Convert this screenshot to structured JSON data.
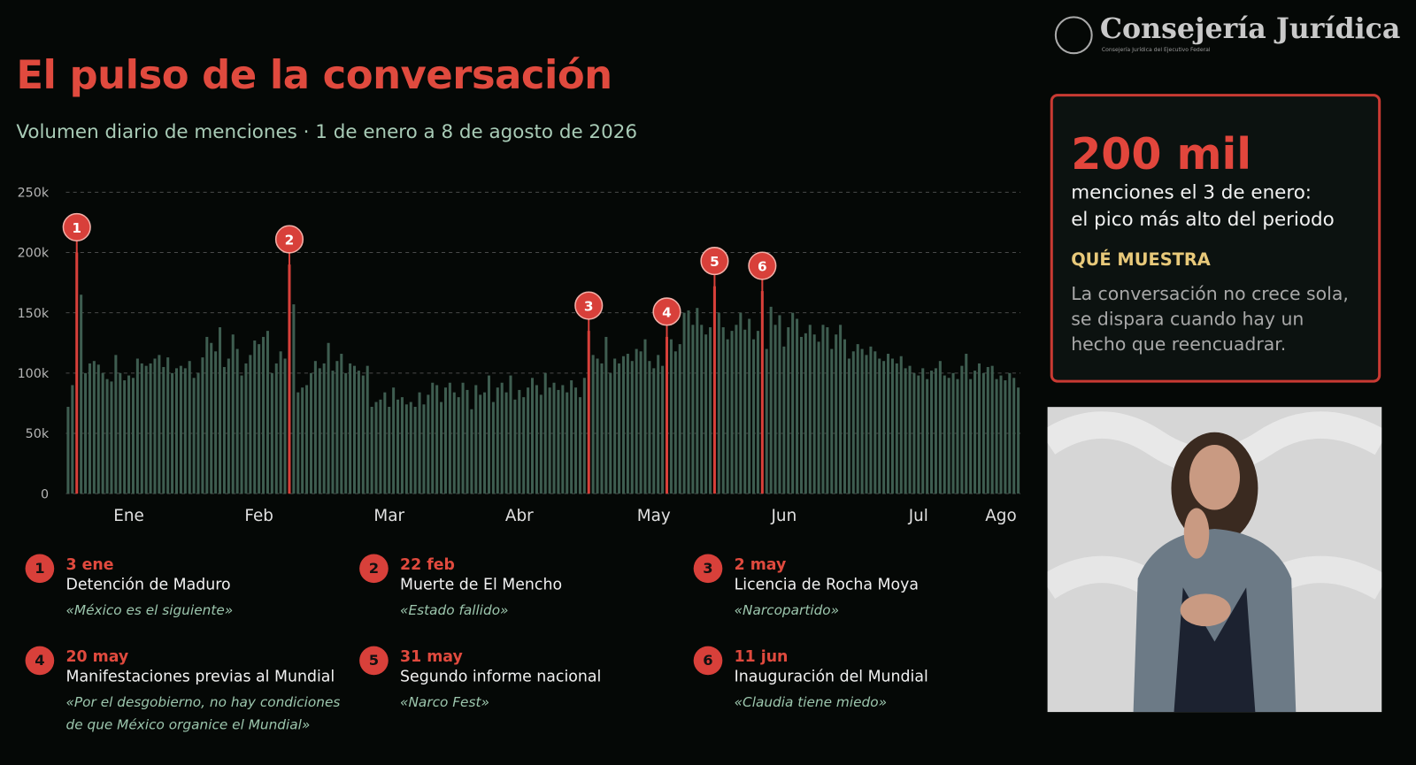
{
  "header": {
    "logo": "Consejería Jurídica",
    "logo_subtitle": "Consejería Jurídica del Ejecutivo Federal"
  },
  "chart_data": {
    "type": "bar",
    "title": "El pulso de la conversación",
    "subtitle": "Volumen diario de menciones · 1 de enero a 8 de agosto de 2026",
    "x": [
      1,
      2,
      3,
      4,
      5,
      6,
      7,
      8,
      9,
      10,
      11,
      12,
      13,
      14,
      15,
      16,
      17,
      18,
      19,
      20,
      21,
      22,
      23,
      24,
      25,
      26,
      27,
      28,
      29,
      30,
      31,
      32,
      33,
      34,
      35,
      36,
      37,
      38,
      39,
      40,
      41,
      42,
      43,
      44,
      45,
      46,
      47,
      48,
      49,
      50,
      51,
      52,
      53,
      54,
      55,
      56,
      57,
      58,
      59,
      60,
      61,
      62,
      63,
      64,
      65,
      66,
      67,
      68,
      69,
      70,
      71,
      72,
      73,
      74,
      75,
      76,
      77,
      78,
      79,
      80,
      81,
      82,
      83,
      84,
      85,
      86,
      87,
      88,
      89,
      90,
      91,
      92,
      93,
      94,
      95,
      96,
      97,
      98,
      99,
      100,
      101,
      102,
      103,
      104,
      105,
      106,
      107,
      108,
      109,
      110,
      111,
      112,
      113,
      114,
      115,
      116,
      117,
      118,
      119,
      120,
      121,
      122,
      123,
      124,
      125,
      126,
      127,
      128,
      129,
      130,
      131,
      132,
      133,
      134,
      135,
      136,
      137,
      138,
      139,
      140,
      141,
      142,
      143,
      144,
      145,
      146,
      147,
      148,
      149,
      150,
      151,
      152,
      153,
      154,
      155,
      156,
      157,
      158,
      159,
      160,
      161,
      162,
      163,
      164,
      165,
      166,
      167,
      168,
      169,
      170,
      171,
      172,
      173,
      174,
      175,
      176,
      177,
      178,
      179,
      180,
      181,
      182,
      183,
      184,
      185,
      186,
      187,
      188,
      189,
      190,
      191,
      192,
      193,
      194,
      195,
      196,
      197,
      198,
      199,
      200,
      201,
      202,
      203,
      204,
      205,
      206,
      207,
      208,
      209,
      210,
      211,
      212,
      213,
      214,
      215,
      216,
      217,
      218,
      219,
      220
    ],
    "values": [
      72000,
      90000,
      200000,
      165000,
      100000,
      108000,
      110000,
      107000,
      100000,
      95000,
      93000,
      115000,
      100000,
      94000,
      98000,
      96000,
      112000,
      108000,
      106000,
      108000,
      112000,
      115000,
      105000,
      113000,
      100000,
      104000,
      106000,
      104000,
      110000,
      96000,
      100000,
      113000,
      130000,
      125000,
      118000,
      138000,
      105000,
      112000,
      132000,
      120000,
      98000,
      108000,
      115000,
      127000,
      124000,
      130000,
      135000,
      100000,
      108000,
      118000,
      112000,
      190000,
      157000,
      84000,
      88000,
      90000,
      100000,
      110000,
      104000,
      108000,
      125000,
      102000,
      110000,
      116000,
      100000,
      108000,
      106000,
      102000,
      98000,
      106000,
      72000,
      76000,
      78000,
      84000,
      72000,
      88000,
      78000,
      80000,
      74000,
      76000,
      72000,
      84000,
      74000,
      82000,
      92000,
      90000,
      76000,
      88000,
      92000,
      84000,
      80000,
      92000,
      86000,
      70000,
      90000,
      82000,
      84000,
      98000,
      76000,
      88000,
      92000,
      84000,
      98000,
      78000,
      86000,
      80000,
      88000,
      96000,
      90000,
      82000,
      100000,
      88000,
      92000,
      86000,
      90000,
      84000,
      94000,
      88000,
      80000,
      96000,
      135000,
      115000,
      112000,
      108000,
      130000,
      100000,
      112000,
      108000,
      114000,
      116000,
      110000,
      120000,
      118000,
      128000,
      110000,
      104000,
      115000,
      106000,
      130000,
      128000,
      118000,
      124000,
      150000,
      152000,
      140000,
      154000,
      140000,
      132000,
      138000,
      172000,
      150000,
      138000,
      128000,
      135000,
      140000,
      150000,
      136000,
      145000,
      128000,
      135000,
      168000,
      120000,
      155000,
      140000,
      148000,
      122000,
      138000,
      150000,
      145000,
      130000,
      133000,
      140000,
      132000,
      126000,
      140000,
      138000,
      120000,
      132000,
      140000,
      128000,
      112000,
      118000,
      124000,
      120000,
      115000,
      122000,
      118000,
      112000,
      110000,
      116000,
      112000,
      108000,
      114000,
      104000,
      106000,
      100000,
      98000,
      104000,
      95000,
      102000,
      104000,
      110000,
      98000,
      96000,
      100000,
      95000,
      106000,
      116000,
      95000,
      102000,
      108000,
      100000,
      105000,
      106000,
      95000,
      98000,
      94000,
      100000,
      96000,
      88000
    ],
    "color": "#3e5d50",
    "highlight_color": "#d8403a",
    "xlim": [
      0.5,
      220.5
    ],
    "xticks": [
      {
        "value": 15,
        "label": "Ene"
      },
      {
        "value": 45,
        "label": "Feb"
      },
      {
        "value": 75,
        "label": "Mar"
      },
      {
        "value": 105,
        "label": "Abr"
      },
      {
        "value": 136,
        "label": "May"
      },
      {
        "value": 166,
        "label": "Jun"
      },
      {
        "value": 197,
        "label": "Jul"
      },
      {
        "value": 216,
        "label": "Ago"
      }
    ],
    "ylim": [
      0,
      250000
    ],
    "yticks": [
      0,
      {
        "value": 50000,
        "label": "50k"
      },
      {
        "value": 100000,
        "label": "100k"
      },
      {
        "value": 150000,
        "label": "150k"
      },
      {
        "value": 200000,
        "label": "200k"
      },
      {
        "value": 250000,
        "label": "250k"
      }
    ],
    "grid": true,
    "events": [
      {
        "n": "1",
        "x": 3,
        "date": "3 ene",
        "title": "Detención de Maduro",
        "quote": "«México es el siguiente»"
      },
      {
        "n": "2",
        "x": 52,
        "date": "22 feb",
        "title": "Muerte de El Mencho",
        "quote": "«Estado fallido»"
      },
      {
        "n": "3",
        "x": 121,
        "date": "2 may",
        "title": "Licencia de Rocha Moya",
        "quote": "«Narcopartido»"
      },
      {
        "n": "4",
        "x": 139,
        "date": "20 may",
        "title": "Manifestaciones previas al Mundial",
        "quote": "«Por el desgobierno, no hay condiciones de que México organice el Mundial»"
      },
      {
        "n": "5",
        "x": 150,
        "date": "31 may",
        "title": "Segundo informe nacional",
        "quote": "«Narco Fest»"
      },
      {
        "n": "6",
        "x": 161,
        "date": "11 jun",
        "title": "Inauguración del Mundial",
        "quote": "«Claudia tiene miedo»"
      }
    ]
  },
  "panel": {
    "headline": "200 mil",
    "line1": "menciones el 3 de enero:",
    "line2": "el pico más alto del periodo",
    "heading": "QUÉ MUESTRA",
    "text": "La conversación no crece sola, se dispara cuando hay un hecho que reencuadrar."
  }
}
